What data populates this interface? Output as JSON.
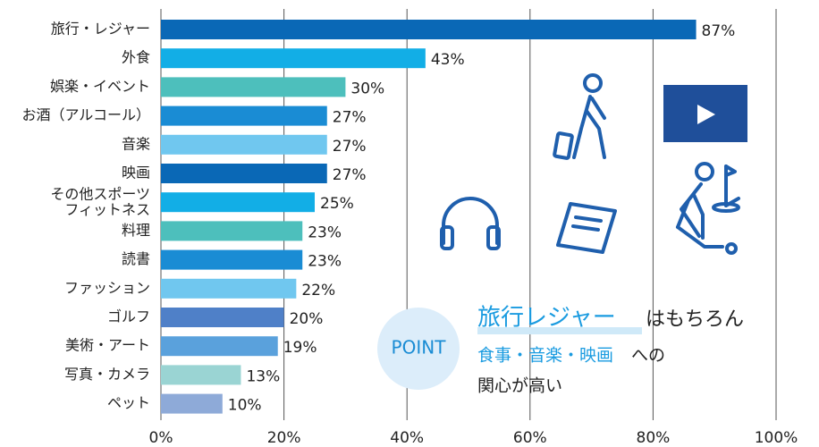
{
  "chart_data": {
    "type": "bar",
    "orientation": "horizontal",
    "categories": [
      "旅行・レジャー",
      "外食",
      "娯楽・イベント",
      "お酒（アルコール）",
      "音楽",
      "映画",
      "その他スポーツ\nフィットネス",
      "料理",
      "読書",
      "ファッション",
      "ゴルフ",
      "美術・アート",
      "写真・カメラ",
      "ペット"
    ],
    "values": [
      87,
      43,
      30,
      27,
      27,
      27,
      25,
      23,
      23,
      22,
      20,
      19,
      13,
      10
    ],
    "value_labels": [
      "87%",
      "43%",
      "30%",
      "27%",
      "27%",
      "27%",
      "25%",
      "23%",
      "23%",
      "22%",
      "20%",
      "19%",
      "13%",
      "10%"
    ],
    "colors": [
      "#0a68b6",
      "#12aee6",
      "#4dbfbc",
      "#1a8cd4",
      "#70c7ef",
      "#0a68b6",
      "#12aee6",
      "#4dbfbc",
      "#1a8cd4",
      "#70c7ef",
      "#4f80c8",
      "#5aa1dc",
      "#9ad4d3",
      "#8eaad8"
    ],
    "xlim": [
      0,
      100
    ],
    "xticks": [
      {
        "value": 0,
        "label": "0%"
      },
      {
        "value": 20,
        "label": "20%"
      },
      {
        "value": 40,
        "label": "40%"
      },
      {
        "value": 60,
        "label": "60%"
      },
      {
        "value": 80,
        "label": "80%"
      },
      {
        "value": 100,
        "label": "100%"
      }
    ],
    "grid": true,
    "annotation": {
      "badge": "POINT",
      "line1_highlight": "旅行レジャー",
      "line1_rest": "はもちろん",
      "line2_highlight": "食事・音楽・映画",
      "line2_rest": "への",
      "line3": "関心が高い"
    }
  }
}
